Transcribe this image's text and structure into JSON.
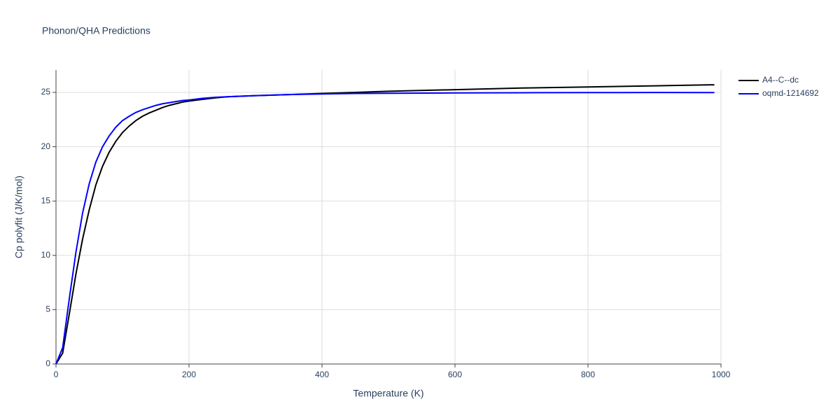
{
  "chart_data": {
    "type": "line",
    "title": "Phonon/QHA Predictions",
    "x_label": "Temperature (K)",
    "y_label": "Cp polyfit (J/K/mol)",
    "x": [
      0,
      10,
      20,
      30,
      40,
      50,
      60,
      70,
      80,
      90,
      100,
      110,
      120,
      130,
      140,
      150,
      160,
      170,
      180,
      190,
      200,
      220,
      240,
      260,
      280,
      300,
      350,
      400,
      450,
      500,
      600,
      700,
      800,
      900,
      990
    ],
    "series": [
      {
        "name": "A4--C--dc",
        "color": "#000000",
        "values": [
          0,
          1.0,
          4.6,
          8.3,
          11.5,
          14.2,
          16.5,
          18.2,
          19.5,
          20.5,
          21.3,
          21.9,
          22.4,
          22.8,
          23.1,
          23.35,
          23.6,
          23.8,
          23.95,
          24.1,
          24.2,
          24.35,
          24.5,
          24.6,
          24.65,
          24.7,
          24.8,
          24.9,
          25.0,
          25.1,
          25.25,
          25.4,
          25.5,
          25.6,
          25.7
        ]
      },
      {
        "name": "oqmd-1214692",
        "color": "#0000ff",
        "values": [
          0,
          1.5,
          6.0,
          10.3,
          13.9,
          16.6,
          18.6,
          20.0,
          21.0,
          21.8,
          22.4,
          22.8,
          23.15,
          23.4,
          23.6,
          23.8,
          23.95,
          24.05,
          24.15,
          24.25,
          24.3,
          24.45,
          24.55,
          24.6,
          24.65,
          24.7,
          24.8,
          24.85,
          24.9,
          24.92,
          24.95,
          24.97,
          24.98,
          24.99,
          24.98
        ]
      }
    ],
    "xlim": [
      0,
      1000
    ],
    "xticks": [
      0,
      200,
      400,
      600,
      800,
      1000
    ],
    "ylim": [
      0,
      27.06
    ],
    "yticks": [
      0,
      5,
      10,
      15,
      20,
      25
    ],
    "grid": true,
    "legend": "top-right"
  }
}
